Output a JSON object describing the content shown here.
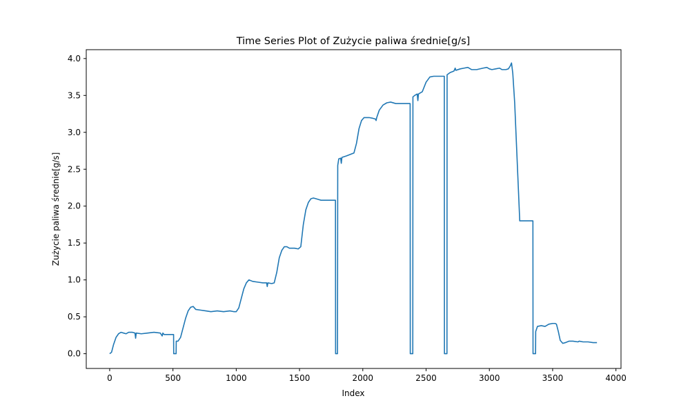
{
  "chart_data": {
    "type": "line",
    "title": "Time Series Plot of Zużycie paliwa średnie[g/s]",
    "xlabel": "Index",
    "ylabel": "Zużycie paliwa średnie[g/s]",
    "xlim": [
      -185,
      4040
    ],
    "ylim": [
      -0.2,
      4.12
    ],
    "grid": false,
    "x_ticks": [
      0,
      500,
      1000,
      1500,
      2000,
      2500,
      3000,
      3500,
      4000
    ],
    "x_tick_labels": [
      "0",
      "500",
      "1000",
      "1500",
      "2000",
      "2500",
      "3000",
      "3500",
      "4000"
    ],
    "y_ticks": [
      0.0,
      0.5,
      1.0,
      1.5,
      2.0,
      2.5,
      3.0,
      3.5,
      4.0
    ],
    "y_tick_labels": [
      "0.0",
      "0.5",
      "1.0",
      "1.5",
      "2.0",
      "2.5",
      "3.0",
      "3.5",
      "4.0"
    ],
    "series": [
      {
        "color": "#1f77b4",
        "points": [
          [
            0,
            0.0
          ],
          [
            15,
            0.02
          ],
          [
            30,
            0.12
          ],
          [
            50,
            0.22
          ],
          [
            70,
            0.27
          ],
          [
            90,
            0.29
          ],
          [
            110,
            0.28
          ],
          [
            130,
            0.27
          ],
          [
            150,
            0.29
          ],
          [
            180,
            0.29
          ],
          [
            200,
            0.28
          ],
          [
            205,
            0.21
          ],
          [
            210,
            0.28
          ],
          [
            250,
            0.27
          ],
          [
            300,
            0.28
          ],
          [
            350,
            0.29
          ],
          [
            400,
            0.28
          ],
          [
            415,
            0.24
          ],
          [
            420,
            0.28
          ],
          [
            430,
            0.26
          ],
          [
            460,
            0.26
          ],
          [
            500,
            0.26
          ],
          [
            505,
            0.26
          ],
          [
            506,
            0.0
          ],
          [
            525,
            0.0
          ],
          [
            526,
            0.17
          ],
          [
            540,
            0.17
          ],
          [
            560,
            0.22
          ],
          [
            580,
            0.35
          ],
          [
            600,
            0.48
          ],
          [
            620,
            0.58
          ],
          [
            640,
            0.63
          ],
          [
            660,
            0.64
          ],
          [
            680,
            0.6
          ],
          [
            720,
            0.59
          ],
          [
            760,
            0.58
          ],
          [
            800,
            0.57
          ],
          [
            850,
            0.58
          ],
          [
            900,
            0.57
          ],
          [
            950,
            0.58
          ],
          [
            980,
            0.57
          ],
          [
            1000,
            0.57
          ],
          [
            1020,
            0.62
          ],
          [
            1040,
            0.75
          ],
          [
            1060,
            0.88
          ],
          [
            1080,
            0.96
          ],
          [
            1100,
            1.0
          ],
          [
            1130,
            0.98
          ],
          [
            1170,
            0.97
          ],
          [
            1210,
            0.96
          ],
          [
            1240,
            0.96
          ],
          [
            1245,
            0.91
          ],
          [
            1250,
            0.96
          ],
          [
            1280,
            0.95
          ],
          [
            1300,
            0.96
          ],
          [
            1320,
            1.1
          ],
          [
            1340,
            1.3
          ],
          [
            1360,
            1.4
          ],
          [
            1380,
            1.45
          ],
          [
            1400,
            1.45
          ],
          [
            1420,
            1.43
          ],
          [
            1460,
            1.43
          ],
          [
            1490,
            1.42
          ],
          [
            1510,
            1.45
          ],
          [
            1530,
            1.75
          ],
          [
            1550,
            1.95
          ],
          [
            1570,
            2.05
          ],
          [
            1590,
            2.1
          ],
          [
            1610,
            2.11
          ],
          [
            1630,
            2.1
          ],
          [
            1650,
            2.09
          ],
          [
            1670,
            2.08
          ],
          [
            1700,
            2.08
          ],
          [
            1740,
            2.08
          ],
          [
            1780,
            2.08
          ],
          [
            1784,
            2.08
          ],
          [
            1785,
            0.0
          ],
          [
            1800,
            0.0
          ],
          [
            1802,
            2.55
          ],
          [
            1810,
            2.64
          ],
          [
            1825,
            2.65
          ],
          [
            1830,
            2.58
          ],
          [
            1835,
            2.66
          ],
          [
            1870,
            2.68
          ],
          [
            1900,
            2.7
          ],
          [
            1930,
            2.72
          ],
          [
            1950,
            2.85
          ],
          [
            1970,
            3.05
          ],
          [
            1990,
            3.16
          ],
          [
            2010,
            3.2
          ],
          [
            2050,
            3.2
          ],
          [
            2080,
            3.19
          ],
          [
            2100,
            3.18
          ],
          [
            2105,
            3.16
          ],
          [
            2110,
            3.2
          ],
          [
            2130,
            3.3
          ],
          [
            2160,
            3.37
          ],
          [
            2190,
            3.4
          ],
          [
            2220,
            3.41
          ],
          [
            2260,
            3.39
          ],
          [
            2300,
            3.39
          ],
          [
            2350,
            3.39
          ],
          [
            2374,
            3.39
          ],
          [
            2375,
            0.0
          ],
          [
            2395,
            0.0
          ],
          [
            2396,
            3.48
          ],
          [
            2410,
            3.5
          ],
          [
            2430,
            3.52
          ],
          [
            2435,
            3.43
          ],
          [
            2440,
            3.52
          ],
          [
            2470,
            3.55
          ],
          [
            2500,
            3.68
          ],
          [
            2530,
            3.75
          ],
          [
            2560,
            3.76
          ],
          [
            2600,
            3.76
          ],
          [
            2640,
            3.76
          ],
          [
            2644,
            3.76
          ],
          [
            2645,
            0.0
          ],
          [
            2665,
            0.0
          ],
          [
            2666,
            3.78
          ],
          [
            2690,
            3.81
          ],
          [
            2720,
            3.83
          ],
          [
            2730,
            3.87
          ],
          [
            2735,
            3.84
          ],
          [
            2770,
            3.86
          ],
          [
            2800,
            3.87
          ],
          [
            2830,
            3.88
          ],
          [
            2860,
            3.85
          ],
          [
            2900,
            3.85
          ],
          [
            2950,
            3.87
          ],
          [
            2980,
            3.88
          ],
          [
            3000,
            3.86
          ],
          [
            3020,
            3.85
          ],
          [
            3050,
            3.86
          ],
          [
            3080,
            3.87
          ],
          [
            3100,
            3.85
          ],
          [
            3130,
            3.85
          ],
          [
            3150,
            3.86
          ],
          [
            3165,
            3.9
          ],
          [
            3175,
            3.94
          ],
          [
            3185,
            3.8
          ],
          [
            3200,
            3.4
          ],
          [
            3215,
            2.8
          ],
          [
            3230,
            2.2
          ],
          [
            3240,
            1.8
          ],
          [
            3280,
            1.8
          ],
          [
            3320,
            1.8
          ],
          [
            3344,
            1.8
          ],
          [
            3345,
            0.0
          ],
          [
            3365,
            0.0
          ],
          [
            3366,
            0.3
          ],
          [
            3380,
            0.37
          ],
          [
            3410,
            0.38
          ],
          [
            3440,
            0.37
          ],
          [
            3470,
            0.4
          ],
          [
            3500,
            0.41
          ],
          [
            3520,
            0.41
          ],
          [
            3530,
            0.4
          ],
          [
            3545,
            0.3
          ],
          [
            3560,
            0.18
          ],
          [
            3580,
            0.14
          ],
          [
            3600,
            0.15
          ],
          [
            3630,
            0.17
          ],
          [
            3660,
            0.17
          ],
          [
            3700,
            0.16
          ],
          [
            3710,
            0.17
          ],
          [
            3740,
            0.16
          ],
          [
            3780,
            0.16
          ],
          [
            3820,
            0.15
          ],
          [
            3850,
            0.15
          ]
        ]
      }
    ]
  }
}
